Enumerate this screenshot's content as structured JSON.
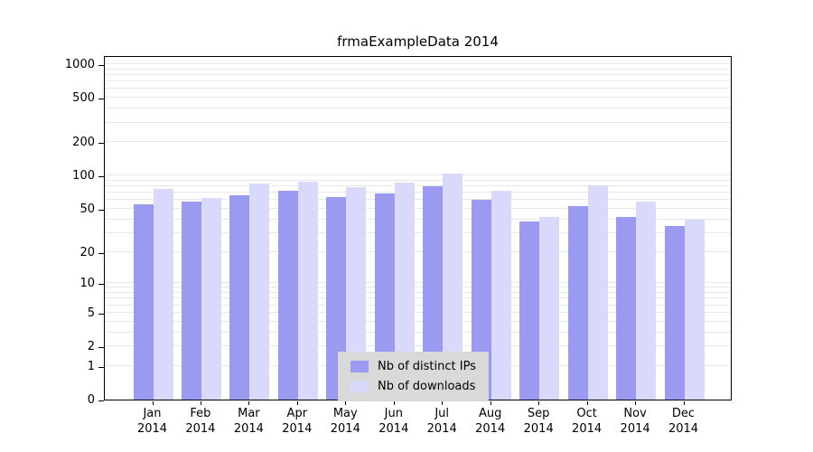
{
  "title": "frmaExampleData 2014",
  "chart_data": {
    "type": "bar",
    "title": "frmaExampleData 2014",
    "categories": [
      "Jan",
      "Feb",
      "Mar",
      "Apr",
      "May",
      "Jun",
      "Jul",
      "Aug",
      "Sep",
      "Oct",
      "Nov",
      "Dec"
    ],
    "x_year": "2014",
    "series": [
      {
        "name": "Nb of distinct IPs",
        "color": "#9a9af0",
        "values": [
          55,
          58,
          66,
          73,
          64,
          69,
          80,
          60,
          38,
          53,
          42,
          35
        ]
      },
      {
        "name": "Nb of downloads",
        "color": "#d9d9fb",
        "values": [
          75,
          63,
          85,
          88,
          78,
          86,
          104,
          73,
          42,
          82,
          58,
          40
        ]
      }
    ],
    "y_ticks": [
      0,
      1,
      2,
      5,
      10,
      20,
      50,
      100,
      200,
      500,
      1000
    ],
    "y_scale": "log1p",
    "ylim": [
      0,
      1000
    ],
    "grid": true,
    "legend_position": "inside-bottom-center",
    "colors": {
      "grid": "#e7e7e7",
      "axis": "#000000",
      "legend_bg": "#d9d9d9",
      "background": "#ffffff"
    }
  }
}
